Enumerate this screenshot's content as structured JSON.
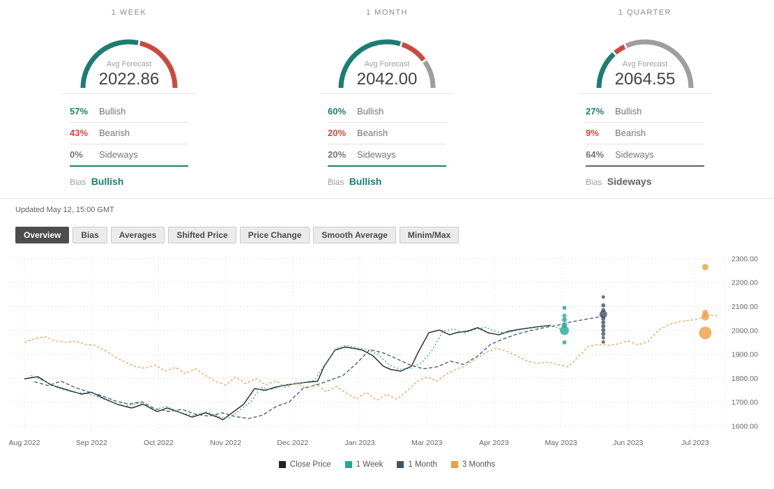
{
  "colors": {
    "bullish": "#1c7d70",
    "bearish": "#ca4a3f",
    "sideways": "#9e9e9e",
    "close": "#212121",
    "week": "#26a69a",
    "month": "#3e5368",
    "quarter": "#ef9d45"
  },
  "panels": [
    {
      "period": "1 WEEK",
      "avg_label": "Avg Forecast",
      "avg_value": "2022.86",
      "gauge": {
        "bullish": 57,
        "bearish": 43,
        "sideways": 0
      },
      "rows": [
        {
          "pct": "57%",
          "label": "Bullish"
        },
        {
          "pct": "43%",
          "label": "Bearish"
        },
        {
          "pct": "0%",
          "label": "Sideways"
        }
      ],
      "bias_label": "Bias",
      "bias_value": "Bullish",
      "bias_color": "#1c7d70"
    },
    {
      "period": "1 MONTH",
      "avg_label": "Avg Forecast",
      "avg_value": "2042.00",
      "gauge": {
        "bullish": 60,
        "bearish": 20,
        "sideways": 20
      },
      "rows": [
        {
          "pct": "60%",
          "label": "Bullish"
        },
        {
          "pct": "20%",
          "label": "Bearish"
        },
        {
          "pct": "20%",
          "label": "Sideways"
        }
      ],
      "bias_label": "Bias",
      "bias_value": "Bullish",
      "bias_color": "#1c7d70"
    },
    {
      "period": "1 QUARTER",
      "avg_label": "Avg Forecast",
      "avg_value": "2064.55",
      "gauge": {
        "bullish": 27,
        "bearish": 9,
        "sideways": 64
      },
      "rows": [
        {
          "pct": "27%",
          "label": "Bullish"
        },
        {
          "pct": "9%",
          "label": "Bearish"
        },
        {
          "pct": "64%",
          "label": "Sideways"
        }
      ],
      "bias_label": "Bias",
      "bias_value": "Sideways",
      "bias_color": "#616161"
    }
  ],
  "updated": "Updated May 12, 15:00 GMT",
  "tabs": [
    {
      "label": "Overview",
      "active": true
    },
    {
      "label": "Bias"
    },
    {
      "label": "Averages"
    },
    {
      "label": "Shifted Price"
    },
    {
      "label": "Price Change"
    },
    {
      "label": "Smooth Average"
    },
    {
      "label": "Minim/Max"
    }
  ],
  "chart_data": {
    "type": "line",
    "x_ticks": [
      {
        "u": 0,
        "label": "Aug 2022"
      },
      {
        "u": 1,
        "label": "Sep 2022"
      },
      {
        "u": 2,
        "label": "Oct 2022"
      },
      {
        "u": 3,
        "label": "Nov 2022"
      },
      {
        "u": 4,
        "label": "Dec 2022"
      },
      {
        "u": 5,
        "label": "Jan 2023"
      },
      {
        "u": 6,
        "label": "Mar 2023"
      },
      {
        "u": 7,
        "label": "Apr 2023"
      },
      {
        "u": 8,
        "label": "May 2023"
      },
      {
        "u": 9,
        "label": "Jun 2023"
      },
      {
        "u": 10,
        "label": "Jul 2023"
      }
    ],
    "y_ticks": [
      {
        "v": 2300,
        "label": "2300.00"
      },
      {
        "v": 2200,
        "label": "2200.00"
      },
      {
        "v": 2100,
        "label": "2100.00"
      },
      {
        "v": 2000,
        "label": "2000.00"
      },
      {
        "v": 1900,
        "label": "1900.00"
      },
      {
        "v": 1800,
        "label": "1800.00"
      },
      {
        "v": 1700,
        "label": "1700.00"
      },
      {
        "v": 1600,
        "label": "1600.00"
      }
    ],
    "ylim": [
      1600,
      2300
    ],
    "grid": true,
    "legend_position": "bottom",
    "series": [
      {
        "name": "Close Price",
        "color": "#212121",
        "dash": "",
        "width": 1.4,
        "data": [
          [
            0,
            1798
          ],
          [
            0.2,
            1807
          ],
          [
            0.4,
            1772
          ],
          [
            0.6,
            1755
          ],
          [
            0.85,
            1734
          ],
          [
            1.0,
            1742
          ],
          [
            1.2,
            1714
          ],
          [
            1.4,
            1690
          ],
          [
            1.6,
            1676
          ],
          [
            1.77,
            1692
          ],
          [
            1.98,
            1661
          ],
          [
            2.13,
            1676
          ],
          [
            2.34,
            1655
          ],
          [
            2.5,
            1638
          ],
          [
            2.7,
            1656
          ],
          [
            2.86,
            1640
          ],
          [
            2.96,
            1627
          ],
          [
            3.12,
            1661
          ],
          [
            3.27,
            1692
          ],
          [
            3.43,
            1757
          ],
          [
            3.59,
            1750
          ],
          [
            3.74,
            1763
          ],
          [
            3.9,
            1772
          ],
          [
            4.05,
            1778
          ],
          [
            4.21,
            1784
          ],
          [
            4.37,
            1788
          ],
          [
            4.47,
            1851
          ],
          [
            4.63,
            1918
          ],
          [
            4.78,
            1931
          ],
          [
            4.94,
            1924
          ],
          [
            5.04,
            1918
          ],
          [
            5.2,
            1894
          ],
          [
            5.35,
            1851
          ],
          [
            5.46,
            1837
          ],
          [
            5.61,
            1830
          ],
          [
            5.77,
            1851
          ],
          [
            5.87,
            1909
          ],
          [
            6.03,
            1991
          ],
          [
            6.19,
            2002
          ],
          [
            6.34,
            1982
          ],
          [
            6.44,
            1991
          ],
          [
            6.6,
            1997
          ],
          [
            6.76,
            2012
          ],
          [
            6.91,
            1991
          ],
          [
            7.07,
            1982
          ],
          [
            7.22,
            1997
          ],
          [
            7.38,
            2005
          ],
          [
            7.54,
            2011
          ],
          [
            7.69,
            2017
          ],
          [
            7.85,
            2022
          ]
        ]
      },
      {
        "name": "1 Week",
        "color": "#26a69a",
        "dash": "2 3",
        "width": 1.3,
        "data": [
          [
            0.1,
            1812
          ],
          [
            0.3,
            1788
          ],
          [
            0.5,
            1760
          ],
          [
            0.72,
            1742
          ],
          [
            0.92,
            1738
          ],
          [
            1.12,
            1720
          ],
          [
            1.32,
            1698
          ],
          [
            1.52,
            1684
          ],
          [
            1.72,
            1698
          ],
          [
            1.92,
            1668
          ],
          [
            2.12,
            1682
          ],
          [
            2.32,
            1658
          ],
          [
            2.52,
            1644
          ],
          [
            2.72,
            1660
          ],
          [
            2.92,
            1638
          ],
          [
            3.06,
            1634
          ],
          [
            3.22,
            1670
          ],
          [
            3.38,
            1702
          ],
          [
            3.52,
            1762
          ],
          [
            3.68,
            1754
          ],
          [
            3.84,
            1768
          ],
          [
            4.0,
            1776
          ],
          [
            4.16,
            1782
          ],
          [
            4.32,
            1792
          ],
          [
            4.48,
            1858
          ],
          [
            4.64,
            1924
          ],
          [
            4.8,
            1938
          ],
          [
            4.96,
            1928
          ],
          [
            5.12,
            1920
          ],
          [
            5.28,
            1898
          ],
          [
            5.44,
            1856
          ],
          [
            5.6,
            1838
          ],
          [
            5.76,
            1842
          ],
          [
            5.92,
            1864
          ],
          [
            6.08,
            1918
          ],
          [
            6.24,
            1998
          ],
          [
            6.4,
            2006
          ],
          [
            6.56,
            1990
          ],
          [
            6.72,
            2004
          ],
          [
            6.88,
            2014
          ],
          [
            7.04,
            1994
          ],
          [
            7.2,
            1990
          ],
          [
            7.36,
            2002
          ],
          [
            7.52,
            2010
          ],
          [
            7.68,
            2016
          ],
          [
            7.84,
            2022
          ],
          [
            8.0,
            2005
          ]
        ]
      },
      {
        "name": "1 Month",
        "color": "#3e5368",
        "dash": "5 3",
        "width": 1.3,
        "data": [
          [
            0.15,
            1786
          ],
          [
            0.35,
            1770
          ],
          [
            0.55,
            1788
          ],
          [
            0.75,
            1762
          ],
          [
            0.95,
            1744
          ],
          [
            1.15,
            1728
          ],
          [
            1.35,
            1706
          ],
          [
            1.55,
            1692
          ],
          [
            1.75,
            1702
          ],
          [
            1.95,
            1672
          ],
          [
            2.15,
            1662
          ],
          [
            2.35,
            1670
          ],
          [
            2.55,
            1650
          ],
          [
            2.75,
            1642
          ],
          [
            2.95,
            1656
          ],
          [
            3.15,
            1640
          ],
          [
            3.35,
            1632
          ],
          [
            3.55,
            1646
          ],
          [
            3.75,
            1682
          ],
          [
            3.95,
            1702
          ],
          [
            4.15,
            1758
          ],
          [
            4.35,
            1772
          ],
          [
            4.55,
            1792
          ],
          [
            4.75,
            1812
          ],
          [
            4.95,
            1862
          ],
          [
            5.15,
            1920
          ],
          [
            5.35,
            1906
          ],
          [
            5.55,
            1882
          ],
          [
            5.75,
            1856
          ],
          [
            5.95,
            1840
          ],
          [
            6.15,
            1848
          ],
          [
            6.35,
            1872
          ],
          [
            6.55,
            1858
          ],
          [
            6.75,
            1892
          ],
          [
            6.95,
            1942
          ],
          [
            7.15,
            1966
          ],
          [
            7.35,
            1986
          ],
          [
            7.55,
            2000
          ],
          [
            7.75,
            2012
          ],
          [
            7.95,
            2022
          ],
          [
            8.15,
            2036
          ],
          [
            8.35,
            2046
          ],
          [
            8.55,
            2056
          ],
          [
            8.63,
            2062
          ]
        ]
      },
      {
        "name": "3 Months",
        "color": "#ef9d45",
        "dash": "3 3",
        "width": 1.3,
        "data": [
          [
            0,
            1950
          ],
          [
            0.15,
            1966
          ],
          [
            0.3,
            1974
          ],
          [
            0.45,
            1958
          ],
          [
            0.6,
            1950
          ],
          [
            0.75,
            1956
          ],
          [
            0.9,
            1942
          ],
          [
            1.05,
            1938
          ],
          [
            1.2,
            1916
          ],
          [
            1.35,
            1890
          ],
          [
            1.5,
            1868
          ],
          [
            1.65,
            1850
          ],
          [
            1.8,
            1842
          ],
          [
            1.95,
            1856
          ],
          [
            2.1,
            1830
          ],
          [
            2.25,
            1846
          ],
          [
            2.4,
            1820
          ],
          [
            2.55,
            1840
          ],
          [
            2.7,
            1812
          ],
          [
            2.85,
            1788
          ],
          [
            3.0,
            1772
          ],
          [
            3.15,
            1806
          ],
          [
            3.3,
            1778
          ],
          [
            3.45,
            1800
          ],
          [
            3.6,
            1772
          ],
          [
            3.75,
            1790
          ],
          [
            3.9,
            1762
          ],
          [
            4.05,
            1782
          ],
          [
            4.2,
            1758
          ],
          [
            4.35,
            1776
          ],
          [
            4.5,
            1744
          ],
          [
            4.65,
            1766
          ],
          [
            4.8,
            1738
          ],
          [
            4.95,
            1714
          ],
          [
            5.1,
            1742
          ],
          [
            5.25,
            1708
          ],
          [
            5.4,
            1734
          ],
          [
            5.55,
            1712
          ],
          [
            5.7,
            1746
          ],
          [
            5.85,
            1786
          ],
          [
            6.0,
            1806
          ],
          [
            6.15,
            1788
          ],
          [
            6.3,
            1820
          ],
          [
            6.45,
            1840
          ],
          [
            6.6,
            1856
          ],
          [
            6.75,
            1886
          ],
          [
            6.9,
            1910
          ],
          [
            7.05,
            1926
          ],
          [
            7.2,
            1912
          ],
          [
            7.35,
            1892
          ],
          [
            7.5,
            1872
          ],
          [
            7.65,
            1862
          ],
          [
            7.8,
            1868
          ],
          [
            7.95,
            1858
          ],
          [
            8.1,
            1848
          ],
          [
            8.25,
            1888
          ],
          [
            8.4,
            1932
          ],
          [
            8.55,
            1942
          ],
          [
            8.7,
            1938
          ],
          [
            8.85,
            1944
          ],
          [
            9.0,
            1956
          ],
          [
            9.15,
            1940
          ],
          [
            9.3,
            1954
          ],
          [
            9.45,
            2002
          ],
          [
            9.6,
            2024
          ],
          [
            9.75,
            2036
          ],
          [
            9.9,
            2042
          ],
          [
            10.05,
            2048
          ],
          [
            10.2,
            2066
          ],
          [
            10.35,
            2060
          ]
        ]
      }
    ],
    "scatter": [
      {
        "series": "1 Week",
        "color": "#26a69a",
        "x": 8.05,
        "points": [
          {
            "y": 2095,
            "r": 3
          },
          {
            "y": 2062,
            "r": 3
          },
          {
            "y": 2045,
            "r": 3.5
          },
          {
            "y": 2022,
            "r": 4
          },
          {
            "y": 2000,
            "r": 6.5
          },
          {
            "y": 1950,
            "r": 3
          }
        ]
      },
      {
        "series": "1 Month",
        "color": "#3e5368",
        "x": 8.63,
        "points": [
          {
            "y": 2140,
            "r": 2.5
          },
          {
            "y": 2105,
            "r": 3
          },
          {
            "y": 2085,
            "r": 3
          },
          {
            "y": 2068,
            "r": 5.5
          },
          {
            "y": 2050,
            "r": 3
          },
          {
            "y": 2034,
            "r": 3
          },
          {
            "y": 2018,
            "r": 3
          },
          {
            "y": 2002,
            "r": 3
          },
          {
            "y": 1986,
            "r": 3
          },
          {
            "y": 1970,
            "r": 2.5
          },
          {
            "y": 1952,
            "r": 2.5
          }
        ]
      },
      {
        "series": "3 Months",
        "color": "#ef9d45",
        "x": 10.15,
        "points": [
          {
            "y": 2265,
            "r": 4.5
          },
          {
            "y": 2075,
            "r": 4
          },
          {
            "y": 2058,
            "r": 5.5
          },
          {
            "y": 1990,
            "r": 9
          }
        ]
      }
    ]
  }
}
